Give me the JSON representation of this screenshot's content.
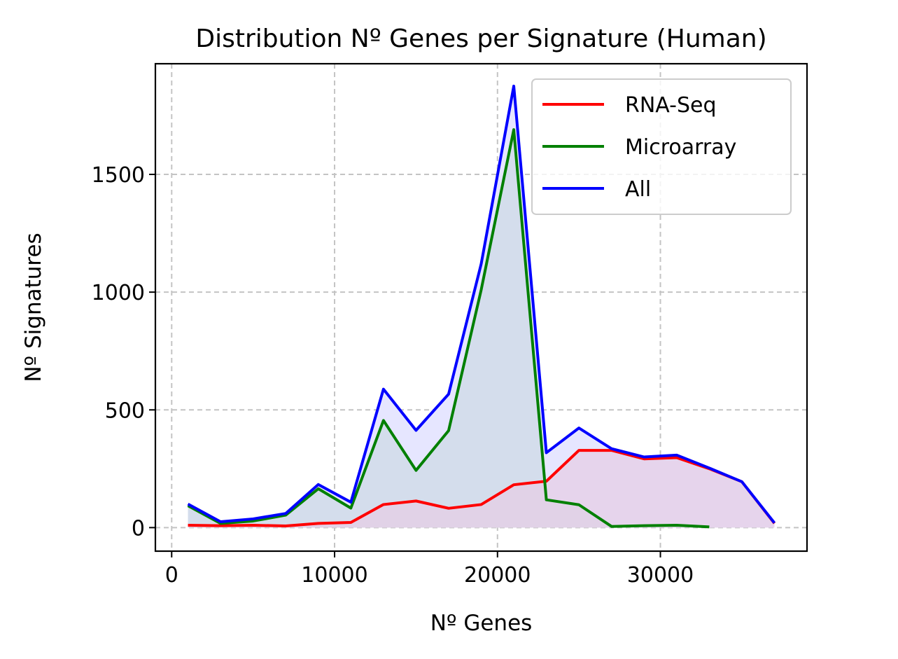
{
  "chart_data": {
    "type": "line",
    "title": "Distribution Nº Genes per Signature (Human)",
    "xlabel": "Nº Genes",
    "ylabel": "Nº Signatures",
    "xlim": [
      -1000,
      39000
    ],
    "ylim": [
      -100,
      1970
    ],
    "xticks": [
      0,
      10000,
      20000,
      30000
    ],
    "yticks": [
      0,
      500,
      1000,
      1500
    ],
    "grid": true,
    "legend_position": "top-right",
    "series": [
      {
        "name": "RNA-Seq",
        "color": "#ff0000",
        "fill": "#e5cde6",
        "x": [
          1000,
          3000,
          5000,
          7000,
          9000,
          11000,
          13000,
          15000,
          17000,
          19000,
          21000,
          23000,
          25000,
          27000,
          29000,
          31000,
          33000,
          35000,
          37000
        ],
        "y": [
          10,
          8,
          10,
          7,
          18,
          22,
          98,
          113,
          82,
          98,
          182,
          197,
          328,
          328,
          292,
          297,
          250,
          195,
          18
        ]
      },
      {
        "name": "Microarray",
        "color": "#008000",
        "fill": "#cdd9e5",
        "x": [
          1000,
          3000,
          5000,
          7000,
          9000,
          11000,
          13000,
          15000,
          17000,
          19000,
          21000,
          23000,
          25000,
          27000,
          29000,
          31000,
          33000
        ],
        "y": [
          93,
          18,
          28,
          53,
          165,
          83,
          455,
          243,
          412,
          1010,
          1690,
          118,
          97,
          5,
          8,
          10,
          3
        ]
      },
      {
        "name": "All",
        "color": "#0000ff",
        "fill": "#e6e6ff",
        "x": [
          1000,
          3000,
          5000,
          7000,
          9000,
          11000,
          13000,
          15000,
          17000,
          19000,
          21000,
          23000,
          25000,
          27000,
          29000,
          31000,
          33000,
          35000,
          37000
        ],
        "y": [
          100,
          25,
          37,
          60,
          183,
          108,
          588,
          413,
          567,
          1120,
          1875,
          318,
          423,
          335,
          300,
          308,
          253,
          195,
          20
        ]
      }
    ]
  }
}
